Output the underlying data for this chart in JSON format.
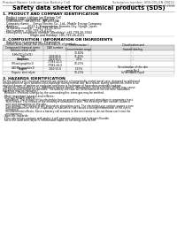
{
  "background_color": "#ffffff",
  "header_left": "Product Name: Lithium Ion Battery Cell",
  "header_right_line1": "Substance number: SDS-001-EN-00010",
  "header_right_line2": "Established / Revision: Dec.7.2018",
  "title": "Safety data sheet for chemical products (SDS)",
  "section1_title": "1. PRODUCT AND COMPANY IDENTIFICATION",
  "section1_lines": [
    "  - Product name: Lithium Ion Battery Cell",
    "  - Product code: Cylindrical-type cell",
    "    (INR18650J, INR18650L, INR18650A)",
    "  - Company name:    Sanyo Electric Co., Ltd., Mobile Energy Company",
    "  - Address:          2023-1  Kannondaira, Sumoto-City, Hyogo, Japan",
    "  - Telephone number:  +81-799-26-4111",
    "  - Fax number:  +81-799-26-4123",
    "  - Emergency telephone number (Weekday) +81-799-26-3562",
    "                               (Night and Holiday) +81-799-26-4131"
  ],
  "section2_title": "2. COMPOSITION / INFORMATION ON INGREDIENTS",
  "section2_line1": "  - Substance or preparation: Preparation",
  "section2_line2": "  - Information about the chemical nature of product:",
  "table_col_headers": [
    "Component/chemical name",
    "CAS number",
    "Concentration /\nConcentration range",
    "Classification and\nhazard labeling"
  ],
  "table_rows": [
    [
      "Lithium cobalt oxide\n(LiMnO2/LiCoO2)",
      "-",
      "30-60%",
      "-"
    ],
    [
      "Iron",
      "7439-89-6",
      "15-25%",
      "-"
    ],
    [
      "Aluminum",
      "7429-90-5",
      "2-5%",
      "-"
    ],
    [
      "Graphite\n(Mixed graphite1)\n(All-Mix graphite1)",
      "77082-42-5\n77082-44-2",
      "10-25%",
      "-"
    ],
    [
      "Copper",
      "7440-50-8",
      "5-15%",
      "Sensitization of the skin\ngroup No.2"
    ],
    [
      "Organic electrolyte",
      "-",
      "10-20%",
      "Inflammable liquid"
    ]
  ],
  "section3_title": "3. HAZARDS IDENTIFICATION",
  "section3_para1": [
    "For the battery cell, chemical materials are stored in a hermetically sealed metal case, designed to withstand",
    "temperatures of up to absolute-zero-explosion during normal use. As a result, during normal use, there is no",
    "physical danger of ignition or explosion and there is no danger of hazardous materials leakage.",
    "  However, if exposed to a fire, added mechanical shocks, decomposes, wirtten electric effects may cause.",
    "the gas release cannot be operated. The battery cell case will be breached at fire-extreme hazardous",
    "materials may be released.",
    "  Moreover, if heated strongly by the surrounding fire, some gas may be emitted."
  ],
  "section3_bullet1": "- Most important hazard and effects:",
  "section3_human": "  Human health effects:",
  "section3_human_lines": [
    "    Inhalation: The release of the electrolyte has an anesthesia action and stimulates in respiratory tract.",
    "    Skin contact: The release of the electrolyte stimulates a skin. The electrolyte skin contact causes a",
    "    sore and stimulation on the skin.",
    "    Eye contact: The release of the electrolyte stimulates eyes. The electrolyte eye contact causes a sore",
    "    and stimulation on the eye. Especially, a substance that causes a strong inflammation of the eye is",
    "    contained.",
    "    Environmental effects: Since a battery cell remains in the environment, do not throw out it into the",
    "    environment."
  ],
  "section3_bullet2": "- Specific hazards:",
  "section3_specific": [
    "  If the electrolyte contacts with water, it will generate detrimental hydrogen fluoride.",
    "  Since the used electrolyte is inflammable liquid, do not bring close to fire."
  ]
}
